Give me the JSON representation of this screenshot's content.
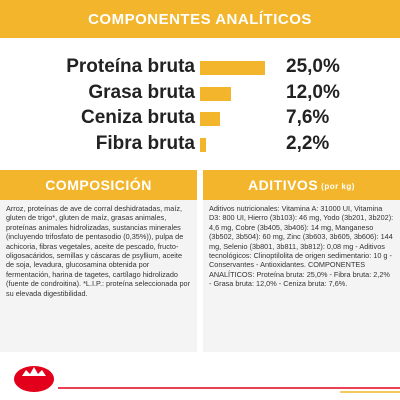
{
  "header": {
    "title": "COMPONENTES ANALÍTICOS"
  },
  "analytics": {
    "items": [
      {
        "label": "Proteína bruta",
        "value": 25.0,
        "value_label": "25,0%"
      },
      {
        "label": "Grasa bruta",
        "value": 12.0,
        "value_label": "12,0%"
      },
      {
        "label": "Ceniza bruta",
        "value": 7.6,
        "value_label": "7,6%"
      },
      {
        "label": "Fibra bruta",
        "value": 2.2,
        "value_label": "2,2%"
      }
    ]
  },
  "composition": {
    "title": "COMPOSICIÓN",
    "text": "Arroz, proteínas de ave de corral deshidratadas, maíz, gluten de trigo*, gluten de maíz, grasas animales, proteínas animales hidrolizadas, sustancias minerales (incluyendo trifosfato de pentasodio (0,35%)), pulpa de achicoria, fibras vegetales, aceite de pescado, fructo-oligosacáridos, semillas y cáscaras de psyllium, aceite de soja, levadura, glucosamina obtenida por fermentación, harina de tagetes, cartílago hidrolizado (fuente de condroitina). *L.I.P.: proteína seleccionada por su elevada digestibilidad."
  },
  "additives": {
    "title": "ADITIVOS",
    "title_note": "(por kg)",
    "text": "Aditivos nutricionales: Vitamina A: 31000 UI, Vitamina D3: 800 UI, Hierro (3b103): 46 mg, Yodo (3b201, 3b202): 4,6 mg, Cobre (3b405, 3b406): 14 mg, Manganeso (3b502, 3b504): 60 mg, Zinc (3b603, 3b605, 3b606): 144 mg, Selenio (3b801, 3b811, 3b812): 0,08 mg - Aditivos tecnológicos: Clinoptilolita de origen sedimentario: 10 g - Conservantes - Antioxidantes. COMPONENTES ANALÍTICOS: Proteína bruta: 25,0% - Fibra bruta: 2,2% - Grasa bruta: 12,0% - Ceniza bruta: 7,6%."
  }
}
